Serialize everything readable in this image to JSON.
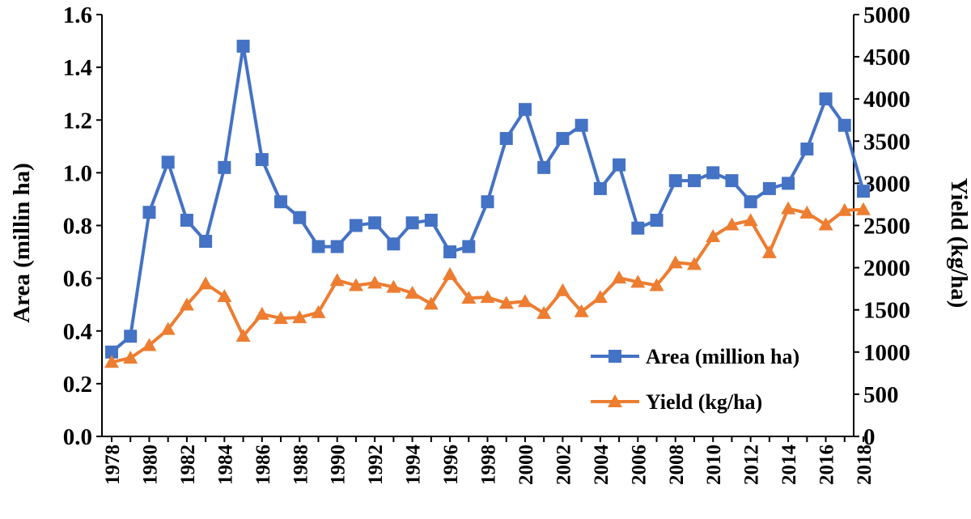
{
  "chart_data": {
    "type": "line",
    "xlabel": "",
    "ylabel": "Area (millin ha)",
    "y2label": "Yield (kg/ha)",
    "xlim": [
      1978,
      2018
    ],
    "ylim": [
      0.0,
      1.6
    ],
    "y2lim": [
      0,
      5000
    ],
    "x_ticks": [
      "1978",
      "1980",
      "1982",
      "1984",
      "1986",
      "1988",
      "1990",
      "1992",
      "1994",
      "1996",
      "1998",
      "2000",
      "2002",
      "2004",
      "2006",
      "2008",
      "2010",
      "2012",
      "2014",
      "2016",
      "2018"
    ],
    "y_ticks": [
      "0.0",
      "0.2",
      "0.4",
      "0.6",
      "0.8",
      "1.0",
      "1.2",
      "1.4",
      "1.6"
    ],
    "y2_ticks": [
      "0",
      "500",
      "1000",
      "1500",
      "2000",
      "2500",
      "3000",
      "3500",
      "4000",
      "4500",
      "5000"
    ],
    "grid": false,
    "legend_position": "bottom-right",
    "x": [
      1978,
      1979,
      1980,
      1981,
      1982,
      1983,
      1984,
      1985,
      1986,
      1987,
      1988,
      1989,
      1990,
      1991,
      1992,
      1993,
      1994,
      1995,
      1996,
      1997,
      1998,
      1999,
      2000,
      2001,
      2002,
      2003,
      2004,
      2005,
      2006,
      2007,
      2008,
      2009,
      2010,
      2011,
      2012,
      2013,
      2014,
      2015,
      2016,
      2017,
      2018
    ],
    "series": [
      {
        "name": "Area (million ha)",
        "axis": "left",
        "marker": "square",
        "color": "#4472C4",
        "values": [
          0.32,
          0.38,
          0.85,
          1.04,
          0.82,
          0.74,
          1.02,
          1.48,
          1.05,
          0.89,
          0.83,
          0.72,
          0.72,
          0.8,
          0.81,
          0.73,
          0.81,
          0.82,
          0.7,
          0.72,
          0.89,
          1.13,
          1.24,
          1.02,
          1.13,
          1.18,
          0.94,
          1.03,
          0.79,
          0.82,
          0.97,
          0.97,
          1.0,
          0.97,
          0.89,
          0.94,
          0.96,
          1.09,
          1.28,
          1.18,
          0.93
        ]
      },
      {
        "name": "Yield (kg/ha)",
        "axis": "right",
        "marker": "triangle",
        "color": "#ED7D31",
        "values": [
          880,
          930,
          1080,
          1270,
          1560,
          1810,
          1660,
          1190,
          1450,
          1400,
          1410,
          1470,
          1850,
          1790,
          1820,
          1770,
          1700,
          1570,
          1920,
          1640,
          1650,
          1580,
          1600,
          1460,
          1730,
          1480,
          1650,
          1880,
          1830,
          1790,
          2060,
          2040,
          2370,
          2510,
          2560,
          2180,
          2700,
          2650,
          2510,
          2680,
          2690
        ]
      }
    ]
  }
}
